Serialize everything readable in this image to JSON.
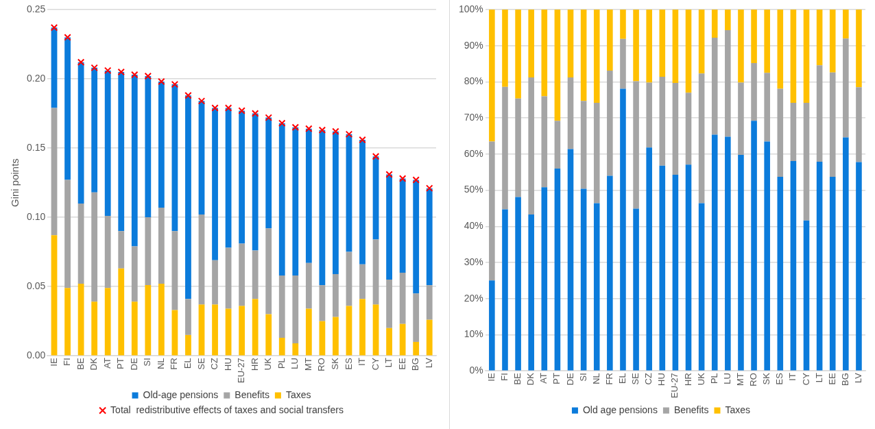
{
  "chart_data": [
    {
      "type": "bar",
      "stacked": true,
      "ylabel": "Gini points",
      "legend": "bottom",
      "grid": "y",
      "categories": [
        "IE",
        "FI",
        "BE",
        "DK",
        "AT",
        "PT",
        "DE",
        "SI",
        "NL",
        "FR",
        "EL",
        "SE",
        "CZ",
        "HU",
        "EU-27",
        "HR",
        "UK",
        "PL",
        "LU",
        "MT",
        "RO",
        "SK",
        "ES",
        "IT",
        "CY",
        "LT",
        "EE",
        "BG",
        "LV"
      ],
      "ylim": [
        0,
        0.25
      ],
      "yticks": [
        {
          "value": 0,
          "label": "0.00"
        },
        {
          "value": 0.05,
          "label": "0.05"
        },
        {
          "value": 0.1,
          "label": "0.10"
        },
        {
          "value": 0.15,
          "label": "0.15"
        },
        {
          "value": 0.2,
          "label": "0.20"
        },
        {
          "value": 0.25,
          "label": "0.25"
        }
      ],
      "series": [
        {
          "name": "Taxes",
          "color": "#ffc000",
          "values": [
            0.087,
            0.049,
            0.052,
            0.039,
            0.049,
            0.063,
            0.039,
            0.051,
            0.052,
            0.033,
            0.015,
            0.037,
            0.037,
            0.034,
            0.036,
            0.041,
            0.03,
            0.013,
            0.009,
            0.034,
            0.025,
            0.028,
            0.036,
            0.041,
            0.037,
            0.02,
            0.023,
            0.01,
            0.026
          ]
        },
        {
          "name": "Benefits",
          "color": "#a5a5a5",
          "values": [
            0.092,
            0.078,
            0.058,
            0.079,
            0.052,
            0.027,
            0.04,
            0.049,
            0.055,
            0.057,
            0.026,
            0.065,
            0.032,
            0.044,
            0.045,
            0.035,
            0.062,
            0.045,
            0.049,
            0.033,
            0.026,
            0.031,
            0.039,
            0.025,
            0.047,
            0.035,
            0.037,
            0.035,
            0.025
          ]
        },
        {
          "name": "Old-age pensions",
          "color": "#0b7bdb",
          "values": [
            0.058,
            0.103,
            0.102,
            0.09,
            0.105,
            0.115,
            0.124,
            0.102,
            0.091,
            0.106,
            0.147,
            0.082,
            0.11,
            0.101,
            0.096,
            0.099,
            0.08,
            0.11,
            0.107,
            0.097,
            0.112,
            0.103,
            0.085,
            0.09,
            0.06,
            0.076,
            0.068,
            0.082,
            0.07
          ]
        },
        {
          "name": "Total  redistributive effects of taxes and social transfers",
          "type": "scatter",
          "marker": "cross",
          "color": "#ff0000",
          "x": [
            "IE",
            "FI",
            "BE",
            "DK",
            "AT",
            "PT",
            "DE",
            "SI",
            "NL",
            "FR",
            "EL",
            "SE",
            "CZ",
            "HU",
            "EU-27",
            "HR",
            "UK",
            "PL",
            "LU",
            "MT",
            "RO",
            "SK",
            "ES",
            "IT",
            "CY",
            "LT",
            "EE",
            "BG",
            "LV"
          ],
          "values": [
            0.237,
            0.23,
            0.212,
            0.208,
            0.206,
            0.205,
            0.203,
            0.202,
            0.198,
            0.196,
            0.188,
            0.184,
            0.179,
            0.179,
            0.177,
            0.175,
            0.172,
            0.168,
            0.165,
            0.164,
            0.163,
            0.162,
            0.16,
            0.156,
            0.144,
            0.131,
            0.128,
            0.127,
            0.121
          ]
        }
      ]
    },
    {
      "type": "bar",
      "stacked": true,
      "legend": "bottom",
      "grid": "y",
      "categories": [
        "IE",
        "FI",
        "BE",
        "DK",
        "AT",
        "PT",
        "DE",
        "SI",
        "NL",
        "FR",
        "EL",
        "SE",
        "CZ",
        "HU",
        "EU-27",
        "HR",
        "UK",
        "PL",
        "LU",
        "MT",
        "RO",
        "SK",
        "ES",
        "IT",
        "CY",
        "LT",
        "EE",
        "BG",
        "LV"
      ],
      "ylim": [
        0,
        100
      ],
      "yticks": [
        {
          "value": 0,
          "label": "0%"
        },
        {
          "value": 10,
          "label": "10%"
        },
        {
          "value": 20,
          "label": "20%"
        },
        {
          "value": 30,
          "label": "30%"
        },
        {
          "value": 40,
          "label": "40%"
        },
        {
          "value": 50,
          "label": "50%"
        },
        {
          "value": 60,
          "label": "60%"
        },
        {
          "value": 70,
          "label": "70%"
        },
        {
          "value": 80,
          "label": "80%"
        },
        {
          "value": 90,
          "label": "90%"
        },
        {
          "value": 100,
          "label": "100%"
        }
      ],
      "series": [
        {
          "name": "Old age pensions",
          "color": "#0b7bdb",
          "values": [
            25,
            44.7,
            48.1,
            43.3,
            50.8,
            56.0,
            61.4,
            50.4,
            46.4,
            54.0,
            78.1,
            44.9,
            61.8,
            56.8,
            54.3,
            57.1,
            46.4,
            65.4,
            64.8,
            59.8,
            69.2,
            63.5,
            53.7,
            58.1,
            41.6,
            57.9,
            53.7,
            64.6,
            57.8
          ]
        },
        {
          "name": "Benefits",
          "color": "#a5a5a5",
          "values": [
            38.5,
            33.9,
            27.3,
            37.9,
            25.2,
            13.2,
            19.8,
            24.3,
            27.8,
            29.1,
            13.8,
            35.3,
            18.0,
            24.6,
            25.4,
            19.9,
            35.9,
            26.8,
            29.5,
            20.0,
            16.0,
            19.0,
            24.4,
            16.1,
            32.6,
            26.7,
            28.9,
            27.4,
            20.7
          ]
        },
        {
          "name": "Taxes",
          "color": "#ffc000",
          "values": [
            36.5,
            21.4,
            24.6,
            18.8,
            24.0,
            30.8,
            18.8,
            25.3,
            25.8,
            16.9,
            8.1,
            19.8,
            20.2,
            18.6,
            20.3,
            23.0,
            17.7,
            7.8,
            5.7,
            20.2,
            14.8,
            17.5,
            21.9,
            25.8,
            25.8,
            15.4,
            17.4,
            8.0,
            21.5
          ]
        }
      ]
    }
  ]
}
